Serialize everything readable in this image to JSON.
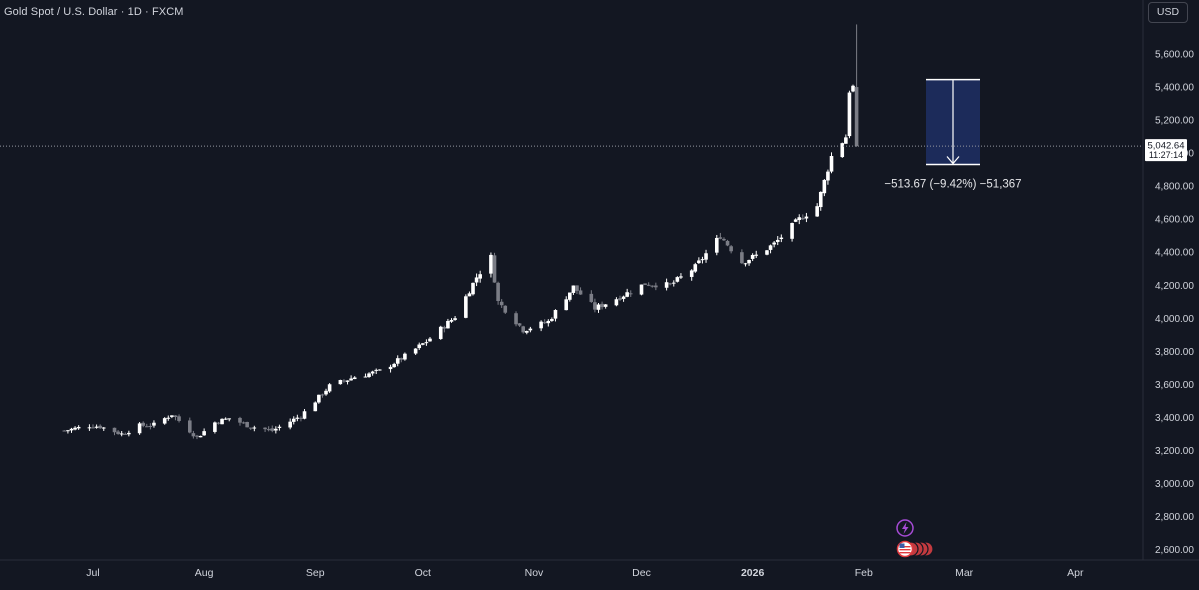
{
  "header": {
    "symbol_title": "Gold Spot / U.S. Dollar · 1D · FXCM",
    "currency_button": "USD"
  },
  "price_label": {
    "price": "5,042.64",
    "countdown": "11:27:14"
  },
  "measure": {
    "label": "−513.67 (−9.42%) −51,367",
    "top_price": 5445,
    "bottom_price": 4931,
    "fill_color": "#1c2b5a"
  },
  "colors": {
    "background": "#131722",
    "up": "#ffffff",
    "down": "#7b7d86",
    "text": "#d1d4dc",
    "event_lightning": "#a64bd6",
    "event_flag": "#e0393e"
  },
  "events": {
    "lightning_icon": "lightning-icon",
    "flag_icon": "us-flag-icon"
  },
  "chart_data": {
    "type": "candlestick",
    "title": "Gold Spot / U.S. Dollar · 1D · FXCM",
    "x_labels": [
      "Jul",
      "Aug",
      "Sep",
      "Oct",
      "Nov",
      "Dec",
      "2026",
      "Feb",
      "Mar",
      "Apr"
    ],
    "y_ticks": [
      "2,600.00",
      "2,800.00",
      "3,000.00",
      "3,200.00",
      "3,400.00",
      "3,600.00",
      "3,800.00",
      "4,000.00",
      "4,200.00",
      "4,400.00",
      "4,600.00",
      "4,800.00",
      "5,000.00",
      "5,200.00",
      "5,400.00",
      "5,600.00"
    ],
    "ylim": [
      2540,
      5710
    ],
    "last_price": 5042.64,
    "anchors": [
      [
        "2025-06-23",
        3320
      ],
      [
        "2025-06-30",
        3350
      ],
      [
        "2025-07-03",
        3345
      ],
      [
        "2025-07-09",
        3300
      ],
      [
        "2025-07-14",
        3350
      ],
      [
        "2025-07-18",
        3355
      ],
      [
        "2025-07-23",
        3420
      ],
      [
        "2025-07-30",
        3280
      ],
      [
        "2025-08-04",
        3370
      ],
      [
        "2025-08-08",
        3395
      ],
      [
        "2025-08-14",
        3345
      ],
      [
        "2025-08-20",
        3320
      ],
      [
        "2025-08-28",
        3410
      ],
      [
        "2025-09-05",
        3590
      ],
      [
        "2025-09-12",
        3645
      ],
      [
        "2025-09-19",
        3680
      ],
      [
        "2025-09-26",
        3770
      ],
      [
        "2025-10-02",
        3860
      ],
      [
        "2025-10-10",
        4010
      ],
      [
        "2025-10-16",
        4250
      ],
      [
        "2025-10-20",
        4370
      ],
      [
        "2025-10-22",
        4100
      ],
      [
        "2025-10-27",
        3980
      ],
      [
        "2025-10-29",
        3930
      ],
      [
        "2025-11-05",
        3980
      ],
      [
        "2025-11-12",
        4190
      ],
      [
        "2025-11-18",
        4060
      ],
      [
        "2025-11-25",
        4130
      ],
      [
        "2025-12-02",
        4210
      ],
      [
        "2025-12-09",
        4200
      ],
      [
        "2025-12-16",
        4310
      ],
      [
        "2025-12-23",
        4500
      ],
      [
        "2025-12-29",
        4340
      ],
      [
        "2026-01-02",
        4380
      ],
      [
        "2026-01-07",
        4450
      ],
      [
        "2026-01-14",
        4600
      ],
      [
        "2026-01-19",
        4680
      ],
      [
        "2026-01-23",
        4980
      ],
      [
        "2026-01-27",
        5100
      ],
      [
        "2026-01-28",
        5380
      ],
      [
        "2026-01-29",
        5400
      ],
      [
        "2026-01-30",
        5042.64
      ]
    ]
  }
}
